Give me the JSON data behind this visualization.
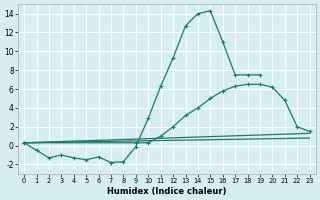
{
  "xlabel": "Humidex (Indice chaleur)",
  "background_color": "#d6eef2",
  "grid_color": "#ffffff",
  "line_color": "#1a7a6e",
  "xlim": [
    -0.5,
    23.5
  ],
  "ylim": [
    -3,
    15
  ],
  "xticks": [
    0,
    1,
    2,
    3,
    4,
    5,
    6,
    7,
    8,
    9,
    10,
    11,
    12,
    13,
    14,
    15,
    16,
    17,
    18,
    19,
    20,
    21,
    22,
    23
  ],
  "yticks": [
    -2,
    0,
    2,
    4,
    6,
    8,
    10,
    12,
    14
  ],
  "series": [
    {
      "x": [
        0,
        1,
        2,
        3,
        4,
        5,
        6,
        7,
        8,
        9,
        10,
        11,
        12,
        13,
        14,
        15,
        16,
        17,
        18,
        19
      ],
      "y": [
        0.3,
        -0.5,
        -1.3,
        -1.0,
        -1.3,
        -1.5,
        -1.2,
        -1.8,
        -1.7,
        -0.1,
        2.9,
        6.3,
        9.3,
        12.7,
        14.0,
        14.3,
        11.0,
        7.5,
        7.5,
        7.5
      ]
    },
    {
      "x": [
        0,
        9,
        10,
        11,
        12,
        13,
        14,
        15,
        16,
        17,
        18,
        19,
        20,
        21,
        22,
        23
      ],
      "y": [
        0.3,
        0.3,
        0.3,
        1.0,
        2.0,
        3.2,
        4.0,
        5.0,
        5.8,
        6.3,
        6.5,
        6.5,
        6.2,
        4.8,
        2.0,
        1.5
      ]
    },
    {
      "x": [
        0,
        23
      ],
      "y": [
        0.3,
        1.3
      ]
    },
    {
      "x": [
        0,
        23
      ],
      "y": [
        0.3,
        0.8
      ]
    }
  ]
}
